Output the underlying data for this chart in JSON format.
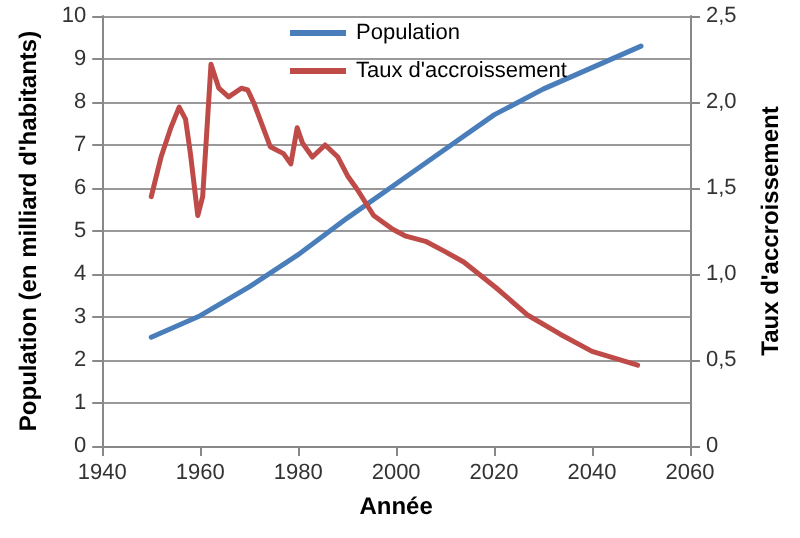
{
  "chart_data": {
    "type": "line",
    "xlabel": "Année",
    "ylabel": "Population (en milliard d'habitants)",
    "y2label": "Taux d'accroissement",
    "xlim": [
      1940,
      2060
    ],
    "xticks": [
      1940,
      1960,
      1980,
      2000,
      2020,
      2040,
      2060
    ],
    "ylim": [
      0,
      10
    ],
    "yticks": [
      0,
      1,
      2,
      3,
      4,
      5,
      6,
      7,
      8,
      9,
      10
    ],
    "y2lim": [
      0,
      2.5
    ],
    "y2ticks": [
      {
        "value": 0,
        "label": "0"
      },
      {
        "value": 0.5,
        "label": "0,5"
      },
      {
        "value": 1,
        "label": "1,0"
      },
      {
        "value": 1.5,
        "label": "1,5"
      },
      {
        "value": 2,
        "label": "2,0"
      },
      {
        "value": 2.5,
        "label": "2,5"
      }
    ],
    "grid": "y",
    "legend": "top",
    "marker": "none",
    "line_style": "solid",
    "series": [
      {
        "name": "Population",
        "color": "#4a7ebb",
        "x": [
          1950,
          1960,
          1970,
          1980,
          1990,
          2000,
          2010,
          2020,
          2030,
          2040,
          2050
        ],
        "values": [
          2.53,
          3.03,
          3.7,
          4.45,
          5.3,
          6.1,
          6.9,
          7.7,
          8.3,
          8.8,
          9.3
        ]
      },
      {
        "name": "Taux d'accroissement",
        "color": "#be4b48",
        "axis": "y2",
        "x": [
          1950,
          1952,
          1954,
          1955.7,
          1957,
          1958,
          1959.5,
          1960.5,
          1961.5,
          1962.2,
          1963.8,
          1965.8,
          1968.4,
          1969.7,
          1971,
          1974.3,
          1977,
          1978.5,
          1979.8,
          1980.9,
          1982.9,
          1985.5,
          1988.1,
          1990.1,
          1992.1,
          1995.4,
          1999.3,
          2002,
          2006,
          2010,
          2013.8,
          2020.4,
          2026.9,
          2033.5,
          2040,
          2049.3
        ],
        "values": [
          1.45,
          1.68,
          1.85,
          1.97,
          1.9,
          1.7,
          1.34,
          1.45,
          1.9,
          2.22,
          2.08,
          2.03,
          2.08,
          2.07,
          1.99,
          1.74,
          1.7,
          1.64,
          1.85,
          1.76,
          1.68,
          1.75,
          1.68,
          1.57,
          1.49,
          1.34,
          1.26,
          1.22,
          1.19,
          1.13,
          1.07,
          0.92,
          0.76,
          0.65,
          0.55,
          0.47
        ]
      }
    ]
  }
}
